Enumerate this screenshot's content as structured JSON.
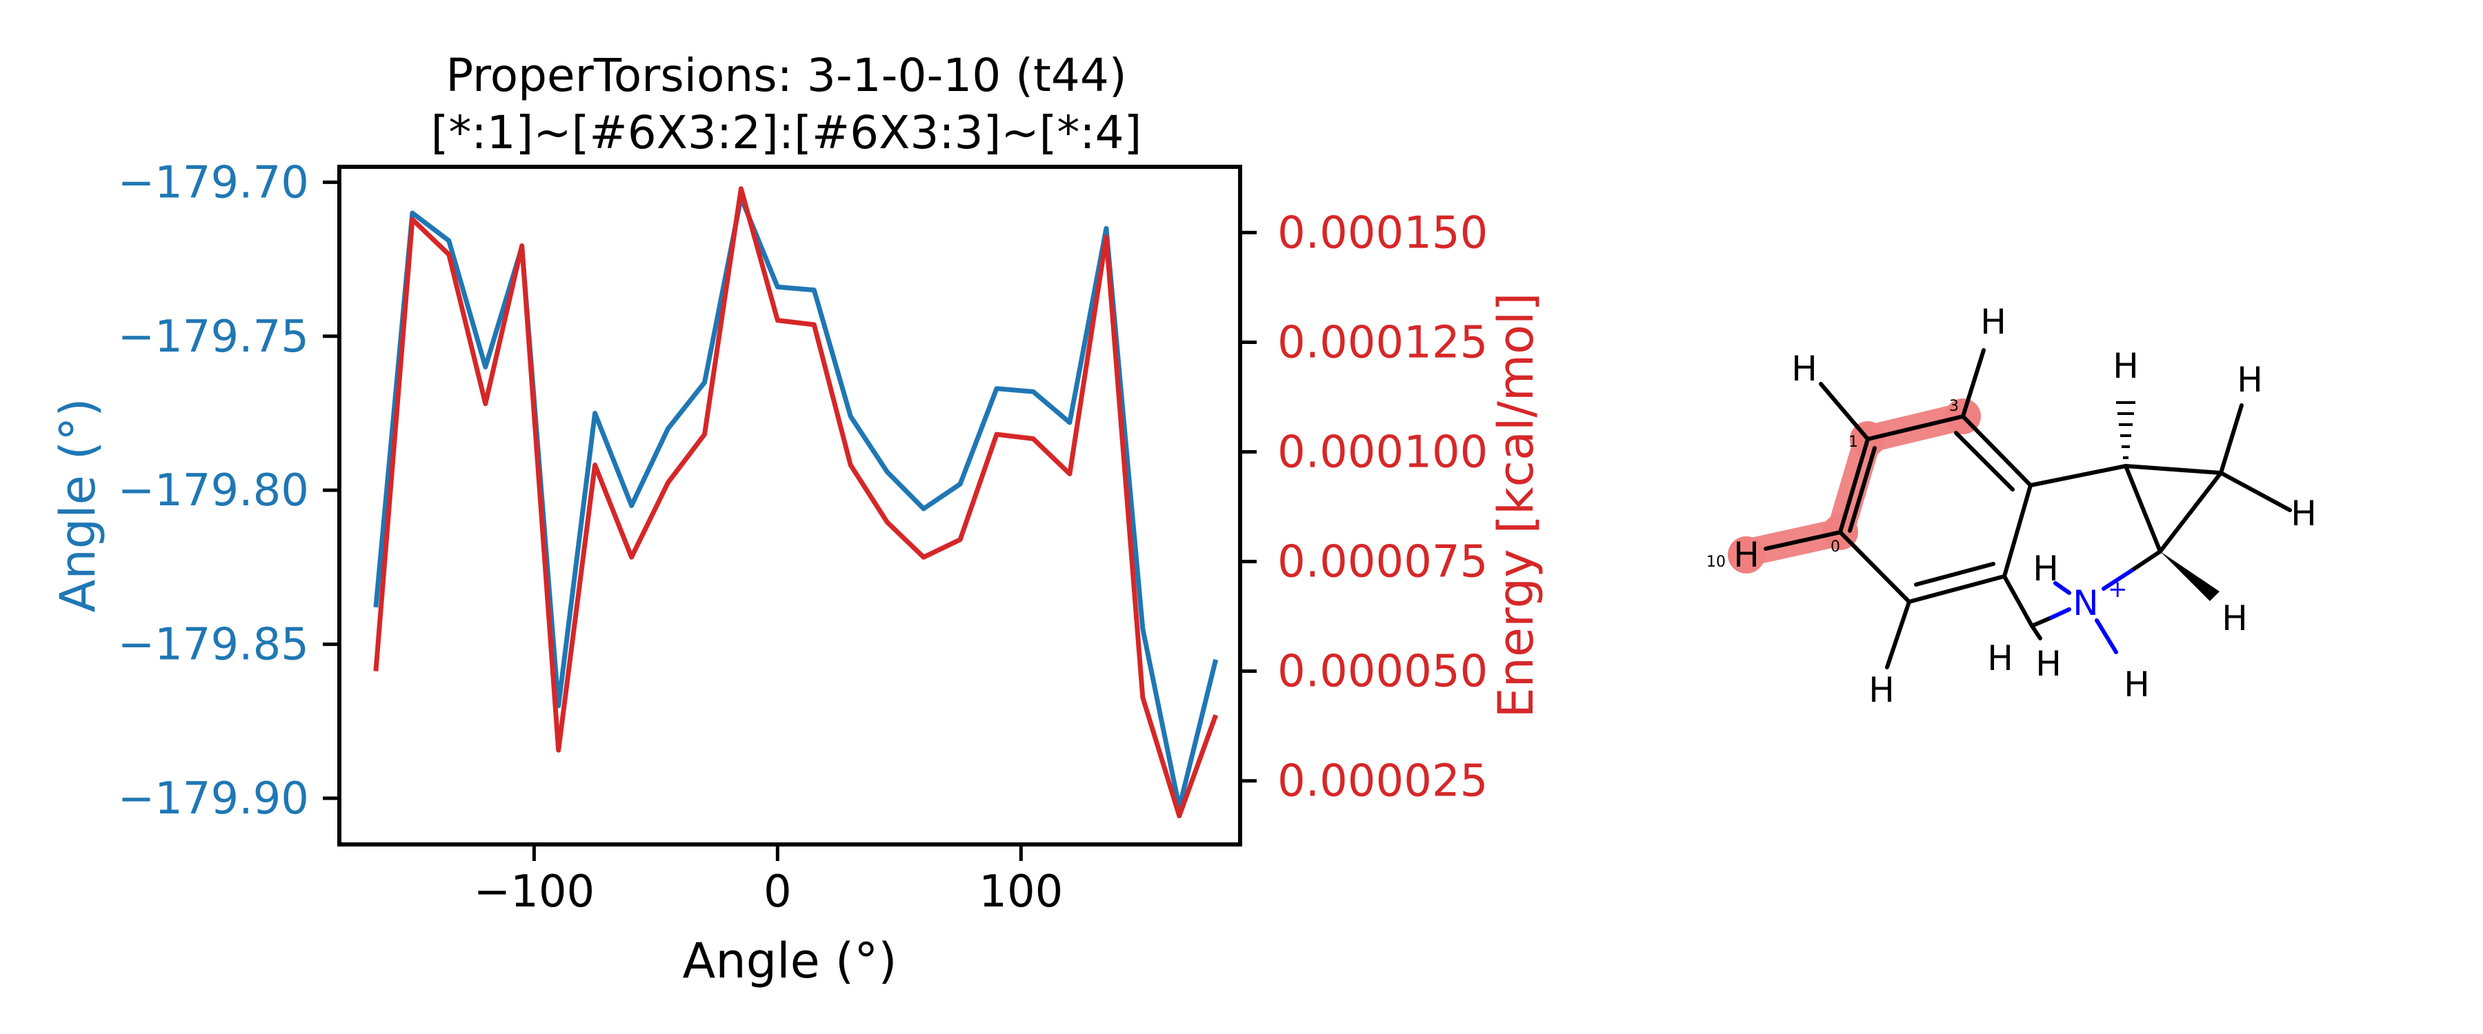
{
  "chart_data": {
    "type": "line",
    "title": "ProperTorsions: 3-1-0-10 (t44)",
    "subtitle": "[*:1]~[#6X3:2]:[#6X3:3]~[*:4]",
    "xlabel": "Angle (°)",
    "ylabel_left": "Angle (°)",
    "ylabel_right": "Energy [kcal/mol]",
    "xlim": [
      -180,
      190
    ],
    "ylim_left": [
      -179.915,
      -179.695
    ],
    "ylim_right": [
      1.05e-05,
      0.000165
    ],
    "x_ticks": [
      -100,
      0,
      100
    ],
    "x_tick_labels": [
      "−100",
      "0",
      "100"
    ],
    "y_left_ticks": [
      -179.7,
      -179.75,
      -179.8,
      -179.85,
      -179.9
    ],
    "y_left_tick_labels": [
      "−179.70",
      "−179.75",
      "−179.80",
      "−179.85",
      "−179.90"
    ],
    "y_right_ticks": [
      0.00015,
      0.000125,
      0.0001,
      7.5e-05,
      5e-05,
      2.5e-05
    ],
    "y_right_tick_labels": [
      "0.000150",
      "0.000125",
      "0.000100",
      "0.000075",
      "0.000050",
      "0.000025"
    ],
    "grid": false,
    "colors": {
      "left_series": "#1f77b4",
      "right_series": "#d62728"
    },
    "x": [
      -165,
      -150,
      -135,
      -120,
      -105,
      -90,
      -75,
      -60,
      -45,
      -30,
      -15,
      0,
      15,
      30,
      45,
      60,
      75,
      90,
      105,
      120,
      135,
      150,
      165,
      180
    ],
    "series": [
      {
        "axis": "left",
        "values": [
          -179.838,
          -179.71,
          -179.719,
          -179.76,
          -179.721,
          -179.87,
          -179.775,
          -179.805,
          -179.78,
          -179.765,
          -179.705,
          -179.734,
          -179.735,
          -179.776,
          -179.794,
          -179.806,
          -179.798,
          -179.767,
          -179.768,
          -179.778,
          -179.715,
          -179.845,
          -179.903,
          -179.855
        ]
      },
      {
        "axis": "right",
        "values": [
          5e-05,
          0.000153,
          0.000145,
          0.000111,
          0.000147,
          3.2e-05,
          9.7e-05,
          7.6e-05,
          9.3e-05,
          0.000104,
          0.00016,
          0.00013,
          0.000129,
          9.7e-05,
          8.4e-05,
          7.6e-05,
          8e-05,
          0.000104,
          0.000103,
          9.5e-05,
          0.000149,
          4.4e-05,
          1.7e-05,
          4e-05
        ]
      }
    ]
  },
  "molecule": {
    "atom_H": "H",
    "atom_N": "N",
    "charge": "+",
    "indices": [
      "10",
      "0",
      "1",
      "3"
    ]
  }
}
